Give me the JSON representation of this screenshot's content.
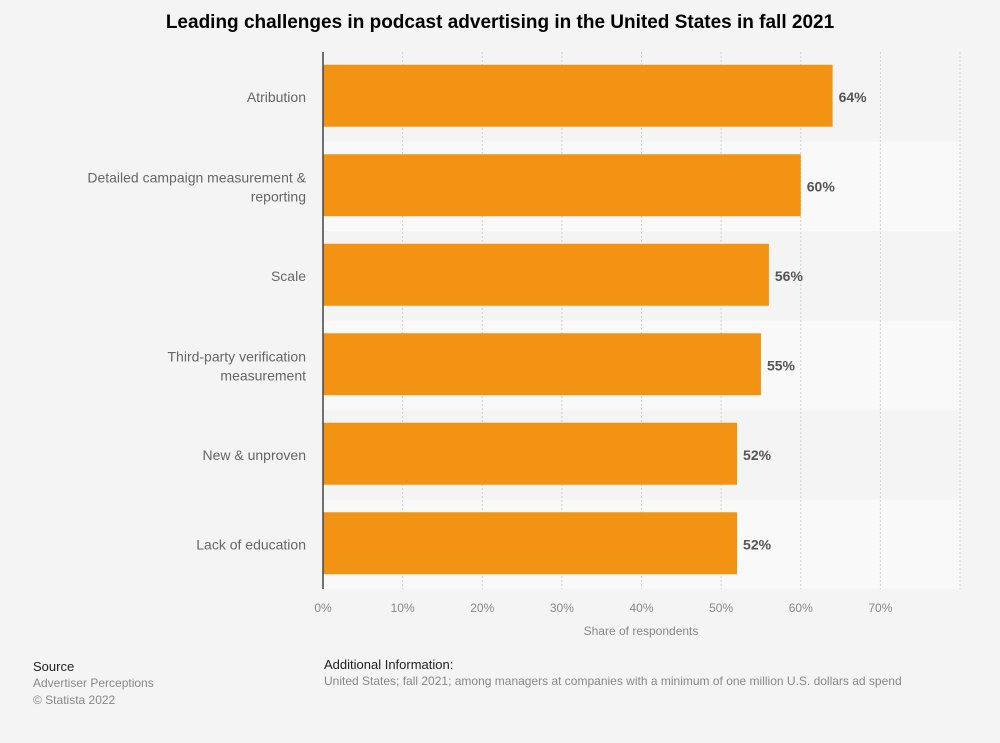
{
  "chart_data": {
    "type": "bar",
    "orientation": "horizontal",
    "title": "Leading challenges in podcast advertising in the United States in fall 2021",
    "categories": [
      "Atribution",
      "Detailed campaign measurement & reporting",
      "Scale",
      "Third-party verification measurement",
      "New & unproven",
      "Lack of education"
    ],
    "values": [
      64,
      60,
      56,
      55,
      52,
      52
    ],
    "value_labels": [
      "64%",
      "60%",
      "56%",
      "55%",
      "52%",
      "52%"
    ],
    "xlabel": "Share of respondents",
    "ylabel": "",
    "xlim": [
      0,
      80
    ],
    "xticks": [
      0,
      10,
      20,
      30,
      40,
      50,
      60,
      70
    ],
    "xtick_labels": [
      "0%",
      "10%",
      "20%",
      "30%",
      "40%",
      "50%",
      "60%",
      "70%"
    ],
    "grid": true,
    "legend": "none",
    "bar_color": "#f39314"
  },
  "footer": {
    "source_title": "Source",
    "source_name": "Advertiser Perceptions",
    "copyright": "© Statista 2022",
    "additional_title": "Additional Information:",
    "additional_text": "United States; fall 2021; among managers at companies with a minimum of one million U.S. dollars ad spend"
  }
}
